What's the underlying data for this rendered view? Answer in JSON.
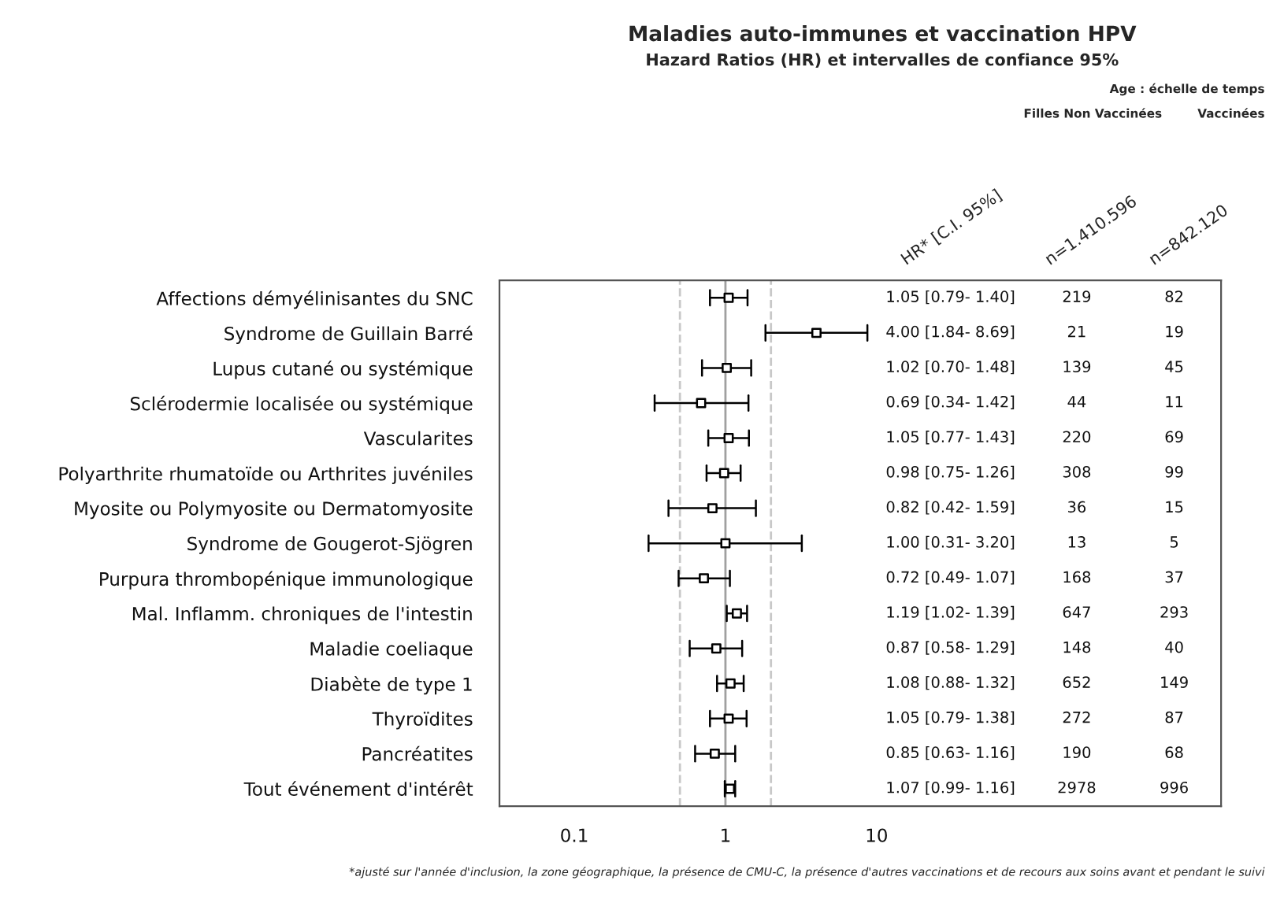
{
  "chart_data": {
    "type": "scatter",
    "title": "Maladies auto-immunes et vaccination HPV",
    "subtitle": "Hazard Ratios (HR) et intervalles de confiance 95%",
    "orientation": "horizontal",
    "log": "x",
    "marker": "square",
    "grid": false,
    "legend": false,
    "categories": [
      "Affections démyélinisantes du SNC",
      "Syndrome de Guillain Barré",
      "Lupus cutané ou systémique",
      "Sclérodermie localisée ou systémique",
      "Vascularites",
      "Polyarthrite rhumatoïde ou Arthrites juvéniles",
      "Myosite ou Polymyosite ou Dermatomyosite",
      "Syndrome de Gougerot-Sjögren",
      "Purpura thrombopénique immunologique",
      "Mal. Inflamm. chroniques de l'intestin",
      "Maladie coeliaque",
      "Diabète de type 1",
      "Thyroïdites",
      "Pancréatites",
      "Tout événement d'intérêt"
    ],
    "series": [
      {
        "color": "#000000",
        "values": [
          1.05,
          4.0,
          1.02,
          0.69,
          1.05,
          0.98,
          0.82,
          1.0,
          0.72,
          1.19,
          0.87,
          1.08,
          1.05,
          0.85,
          1.07
        ],
        "errors": [
          [
            0.79,
            1.4
          ],
          [
            1.84,
            8.69
          ],
          [
            0.7,
            1.48
          ],
          [
            0.34,
            1.42
          ],
          [
            0.77,
            1.43
          ],
          [
            0.75,
            1.26
          ],
          [
            0.42,
            1.59
          ],
          [
            0.31,
            3.2
          ],
          [
            0.49,
            1.07
          ],
          [
            1.02,
            1.39
          ],
          [
            0.58,
            1.29
          ],
          [
            0.88,
            1.32
          ],
          [
            0.79,
            1.38
          ],
          [
            0.63,
            1.16
          ],
          [
            0.99,
            1.16
          ]
        ]
      }
    ],
    "xlim": [
      0.032,
      1900
    ],
    "xticks": [
      0.1,
      1,
      10
    ],
    "ref_lines": [
      {
        "axis": "x",
        "value": 0.5,
        "color": "#c8c8c8",
        "line_style": "dashed"
      },
      {
        "axis": "x",
        "value": 1,
        "color": "#a0a0a0",
        "line_style": "solid"
      },
      {
        "axis": "x",
        "value": 2,
        "color": "#c8c8c8",
        "line_style": "dashed"
      }
    ],
    "annotations": [
      "Age : échelle de temps",
      "Filles Non Vaccinées",
      "Vaccinées",
      "HR* [C.I. 95%]",
      "n=1.410.596",
      "n=842.120",
      "*ajusté sur l'année d'inclusion, la zone géographique, la présence de CMU-C, la présence d'autres vaccinations et de recours aux soins avant et pendant le suivi",
      "1.05 [0.79- 1.40]",
      "219",
      "82",
      "4.00 [1.84- 8.69]",
      "21",
      "19",
      "1.02 [0.70- 1.48]",
      "139",
      "45",
      "0.69 [0.34- 1.42]",
      "44",
      "11",
      "1.05 [0.77- 1.43]",
      "220",
      "69",
      "0.98 [0.75- 1.26]",
      "308",
      "99",
      "0.82 [0.42- 1.59]",
      "36",
      "15",
      "1.00 [0.31- 3.20]",
      "13",
      "5",
      "0.72 [0.49- 1.07]",
      "168",
      "37",
      "1.19 [1.02- 1.39]",
      "647",
      "293",
      "0.87 [0.58- 1.29]",
      "148",
      "40",
      "1.08 [0.88- 1.32]",
      "652",
      "149",
      "1.05 [0.79- 1.38]",
      "272",
      "87",
      "0.85 [0.63- 1.16]",
      "190",
      "68",
      "1.07 [0.99- 1.16]",
      "2978",
      "996"
    ]
  }
}
